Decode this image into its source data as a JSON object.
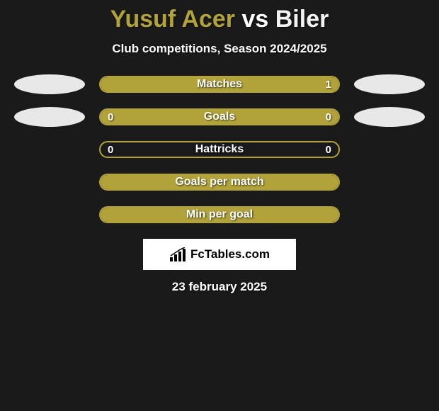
{
  "title": {
    "player1": "Yusuf Acer",
    "vs": "vs",
    "player2": "Biler",
    "player1_color": "#b1a33a",
    "vs_color": "#ffffff",
    "player2_color": "#f3f3f3"
  },
  "subtitle": "Club competitions, Season 2024/2025",
  "bar_border_color": "#b1a33a",
  "bar_fill_color": "#b1a33a",
  "ellipse_left_color": "#e8e8e8",
  "ellipse_right_color": "#e8e8e8",
  "background_color": "#1a1a1a",
  "stats": [
    {
      "label": "Matches",
      "left_val": "",
      "right_val": "1",
      "fill_side": "right",
      "fill_pct": 100,
      "show_left_ellipse": true,
      "show_right_ellipse": true
    },
    {
      "label": "Goals",
      "left_val": "0",
      "right_val": "0",
      "fill_side": "right",
      "fill_pct": 100,
      "show_left_ellipse": true,
      "show_right_ellipse": true
    },
    {
      "label": "Hattricks",
      "left_val": "0",
      "right_val": "0",
      "fill_side": "none",
      "fill_pct": 0,
      "show_left_ellipse": false,
      "show_right_ellipse": false
    },
    {
      "label": "Goals per match",
      "left_val": "",
      "right_val": "",
      "fill_side": "right",
      "fill_pct": 100,
      "show_left_ellipse": false,
      "show_right_ellipse": false
    },
    {
      "label": "Min per goal",
      "left_val": "",
      "right_val": "",
      "fill_side": "right",
      "fill_pct": 100,
      "show_left_ellipse": false,
      "show_right_ellipse": false
    }
  ],
  "brand": "FcTables.com",
  "date": "23 february 2025"
}
